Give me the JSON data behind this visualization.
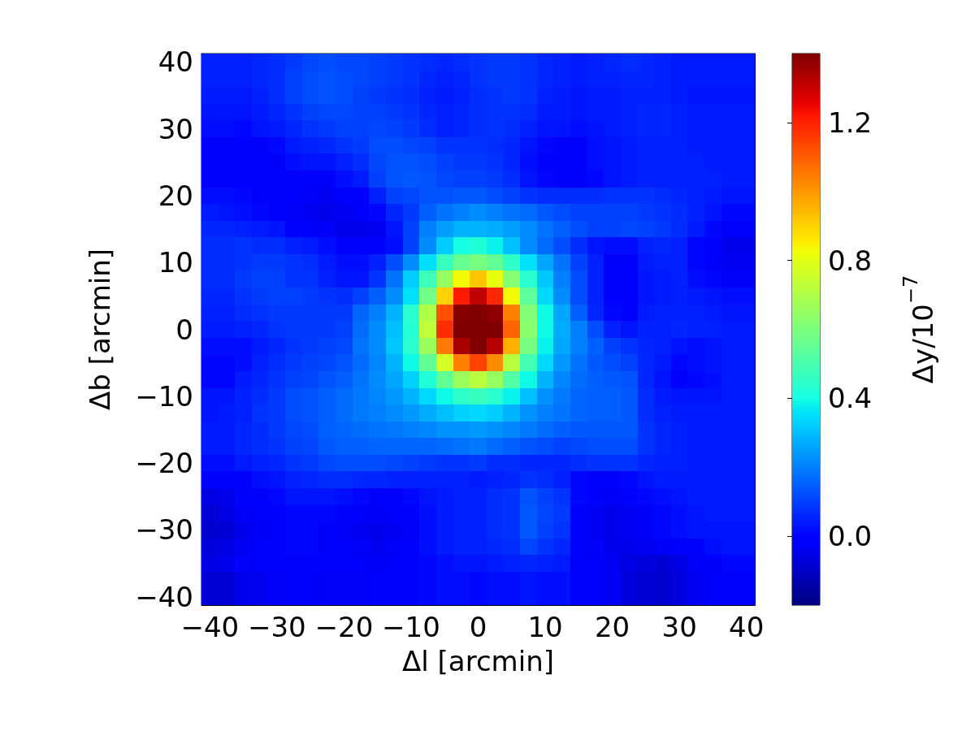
{
  "chart_data": {
    "type": "heatmap",
    "xlabel": "Δl [arcmin]",
    "ylabel": "Δb [arcmin]",
    "clabel": "Δy/10$^{−7}$",
    "categories": [
      "−40",
      null,
      null,
      null,
      "−30",
      null,
      null,
      null,
      "−20",
      null,
      null,
      null,
      "−10",
      null,
      null,
      null,
      "0",
      null,
      null,
      null,
      "10",
      null,
      null,
      null,
      "20",
      null,
      null,
      null,
      "30",
      null,
      null,
      null,
      "40"
    ],
    "y_categories": [
      "40",
      null,
      null,
      null,
      "30",
      null,
      null,
      null,
      "20",
      null,
      null,
      null,
      "10",
      null,
      null,
      null,
      "0",
      null,
      null,
      null,
      "−10",
      null,
      null,
      null,
      "−20",
      null,
      null,
      null,
      "−30",
      null,
      null,
      null,
      "−40"
    ],
    "clim": [
      -0.2,
      1.4
    ],
    "cticks": [
      {
        "value": 0,
        "label": "0.0"
      },
      0.4,
      0.8,
      1.2
    ],
    "cells": [
      [
        0.05,
        0.05,
        0.05,
        0.06,
        0.07,
        0.09,
        0.11,
        0.12,
        0.11,
        0.11,
        0.1,
        0.09,
        0.08,
        0.07,
        0.06,
        0.07,
        0.08,
        0.09,
        0.09,
        0.08,
        0.06,
        0.05,
        0.04,
        0.05,
        0.06,
        0.07,
        0.06,
        0.05,
        0.04,
        0.04,
        0.04,
        0.04,
        0.04
      ],
      [
        0.05,
        0.05,
        0.05,
        0.06,
        0.07,
        0.1,
        0.12,
        0.13,
        0.12,
        0.11,
        0.1,
        0.09,
        0.08,
        0.06,
        0.05,
        0.06,
        0.08,
        0.09,
        0.09,
        0.08,
        0.06,
        0.05,
        0.04,
        0.05,
        0.05,
        0.06,
        0.06,
        0.05,
        0.04,
        0.04,
        0.04,
        0.04,
        0.04
      ],
      [
        0.04,
        0.04,
        0.04,
        0.05,
        0.07,
        0.1,
        0.12,
        0.13,
        0.12,
        0.1,
        0.09,
        0.08,
        0.07,
        0.05,
        0.04,
        0.05,
        0.07,
        0.08,
        0.09,
        0.08,
        0.05,
        0.04,
        0.03,
        0.04,
        0.04,
        0.05,
        0.05,
        0.05,
        0.04,
        0.03,
        0.03,
        0.03,
        0.03
      ],
      [
        0.03,
        0.03,
        0.03,
        0.04,
        0.06,
        0.08,
        0.1,
        0.11,
        0.11,
        0.1,
        0.1,
        0.09,
        0.08,
        0.06,
        0.05,
        0.06,
        0.07,
        0.08,
        0.08,
        0.07,
        0.04,
        0.04,
        0.03,
        0.04,
        0.04,
        0.05,
        0.06,
        0.06,
        0.05,
        0.04,
        0.04,
        0.04,
        0.04
      ],
      [
        0.02,
        0.02,
        0.01,
        0.03,
        0.04,
        0.06,
        0.08,
        0.09,
        0.1,
        0.1,
        0.11,
        0.1,
        0.09,
        0.07,
        0.05,
        0.06,
        0.07,
        0.08,
        0.07,
        0.05,
        0.03,
        0.03,
        0.02,
        0.03,
        0.04,
        0.05,
        0.06,
        0.06,
        0.05,
        0.04,
        0.04,
        0.04,
        0.04
      ],
      [
        0,
        -0.01,
        -0.02,
        0,
        0.01,
        0.04,
        0.05,
        0.06,
        0.08,
        0.09,
        0.12,
        0.12,
        0.11,
        0.1,
        0.08,
        0.08,
        0.08,
        0.07,
        0.06,
        0.03,
        0.01,
        0,
        0,
        0.02,
        0.03,
        0.04,
        0.05,
        0.05,
        0.05,
        0.04,
        0.04,
        0.04,
        0.04
      ],
      [
        -0.01,
        -0.01,
        -0.02,
        -0.01,
        0,
        0.02,
        0.03,
        0.03,
        0.05,
        0.07,
        0.11,
        0.13,
        0.13,
        0.12,
        0.1,
        0.09,
        0.09,
        0.08,
        0.06,
        0.02,
        0,
        -0.01,
        0,
        0.02,
        0.03,
        0.04,
        0.05,
        0.05,
        0.05,
        0.05,
        0.04,
        0.04,
        0.04
      ],
      [
        0,
        0,
        -0.01,
        -0.01,
        0,
        0,
        0,
        -0.01,
        0.02,
        0.04,
        0.1,
        0.13,
        0.14,
        0.13,
        0.11,
        0.1,
        0.1,
        0.09,
        0.07,
        0.03,
        0.01,
        0,
        0,
        0.01,
        0.03,
        0.04,
        0.05,
        0.05,
        0.05,
        0.05,
        0.05,
        0.04,
        0.04
      ],
      [
        0.02,
        0.02,
        0.01,
        0,
        0,
        -0.02,
        -0.03,
        -0.04,
        -0.02,
        0,
        0.05,
        0.1,
        0.11,
        0.13,
        0.13,
        0.14,
        0.14,
        0.12,
        0.1,
        0.08,
        0.07,
        0.07,
        0.07,
        0.07,
        0.08,
        0.08,
        0.08,
        0.07,
        0.06,
        0.05,
        0.04,
        0.03,
        0.03
      ],
      [
        0.04,
        0.03,
        0.02,
        0.01,
        0,
        -0.03,
        -0.04,
        -0.05,
        -0.04,
        -0.02,
        0.01,
        0.06,
        0.09,
        0.15,
        0.18,
        0.2,
        0.22,
        0.2,
        0.18,
        0.17,
        0.14,
        0.12,
        0.1,
        0.1,
        0.1,
        0.1,
        0.09,
        0.08,
        0.07,
        0.05,
        0.03,
        0.01,
        0.01
      ],
      [
        0.06,
        0.06,
        0.05,
        0.04,
        0.03,
        0,
        -0.01,
        -0.03,
        -0.05,
        -0.05,
        -0.04,
        0.03,
        0.1,
        0.2,
        0.25,
        0.28,
        0.28,
        0.27,
        0.25,
        0.22,
        0.18,
        0.15,
        0.12,
        0.1,
        0.1,
        0.11,
        0.1,
        0.09,
        0.07,
        0.04,
        0.01,
        -0.02,
        -0.02
      ],
      [
        0.07,
        0.07,
        0.08,
        0.07,
        0.07,
        0.05,
        0.04,
        0.02,
        -0.01,
        -0.02,
        -0.02,
        0.02,
        0.1,
        0.22,
        0.32,
        0.4,
        0.42,
        0.38,
        0.3,
        0.22,
        0.17,
        0.12,
        0.07,
        0.03,
        0.02,
        0.02,
        0.05,
        0.06,
        0.05,
        0.01,
        -0.01,
        -0.05,
        -0.05
      ],
      [
        0.07,
        0.07,
        0.08,
        0.09,
        0.09,
        0.08,
        0.07,
        0.04,
        0.02,
        0.02,
        0.05,
        0.12,
        0.22,
        0.35,
        0.47,
        0.56,
        0.59,
        0.55,
        0.45,
        0.35,
        0.26,
        0.18,
        0.1,
        0.05,
        0,
        0,
        0.04,
        0.05,
        0.05,
        0.01,
        -0.01,
        -0.04,
        -0.04
      ],
      [
        0.07,
        0.07,
        0.09,
        0.1,
        0.1,
        0.08,
        0.08,
        0.05,
        0.03,
        0.03,
        0.08,
        0.18,
        0.32,
        0.48,
        0.65,
        0.83,
        0.92,
        0.81,
        0.62,
        0.44,
        0.31,
        0.2,
        0.12,
        0.05,
        -0.01,
        -0.02,
        0.03,
        0.04,
        0.05,
        0.02,
        0.01,
        -0.03,
        -0.03
      ],
      [
        0.06,
        0.06,
        0.08,
        0.09,
        0.1,
        0.1,
        0.09,
        0.08,
        0.07,
        0.1,
        0.15,
        0.22,
        0.35,
        0.58,
        0.9,
        1.21,
        1.31,
        1.19,
        0.83,
        0.54,
        0.34,
        0.22,
        0.12,
        0.05,
        -0.01,
        -0.01,
        0.03,
        0.04,
        0.05,
        0.04,
        0.03,
        0.02,
        0.02
      ],
      [
        0.05,
        0.05,
        0.07,
        0.08,
        0.09,
        0.09,
        0.09,
        0.09,
        0.09,
        0.16,
        0.2,
        0.28,
        0.44,
        0.7,
        1.12,
        1.39,
        1.4,
        1.38,
        1.04,
        0.61,
        0.39,
        0.26,
        0.15,
        0.06,
        0.01,
        0,
        0.04,
        0.05,
        0.05,
        0.05,
        0.04,
        0.03,
        0.03
      ],
      [
        0.04,
        0.04,
        0.05,
        0.06,
        0.08,
        0.09,
        0.09,
        0.09,
        0.1,
        0.17,
        0.22,
        0.3,
        0.43,
        0.73,
        1.18,
        1.4,
        1.4,
        1.4,
        1.09,
        0.63,
        0.39,
        0.27,
        0.2,
        0.12,
        0.05,
        0.03,
        0.05,
        0.05,
        0.06,
        0.05,
        0.05,
        0.04,
        0.04
      ],
      [
        0.02,
        0.02,
        0.02,
        0.04,
        0.06,
        0.08,
        0.09,
        0.1,
        0.11,
        0.18,
        0.22,
        0.31,
        0.44,
        0.66,
        1.05,
        1.34,
        1.4,
        1.32,
        0.96,
        0.59,
        0.38,
        0.26,
        0.2,
        0.15,
        0.1,
        0.08,
        0.06,
        0.05,
        0.03,
        0.02,
        0.03,
        0.04,
        0.04
      ],
      [
        0.01,
        0.01,
        0.02,
        0.05,
        0.07,
        0.09,
        0.1,
        0.11,
        0.13,
        0.17,
        0.21,
        0.28,
        0.39,
        0.55,
        0.77,
        1.04,
        1.14,
        1.02,
        0.72,
        0.49,
        0.34,
        0.24,
        0.18,
        0.14,
        0.12,
        0.1,
        0.06,
        0.04,
        0.01,
        0.02,
        0.03,
        0.04,
        0.04
      ],
      [
        0.01,
        0.01,
        0.04,
        0.06,
        0.08,
        0.1,
        0.11,
        0.13,
        0.15,
        0.18,
        0.22,
        0.26,
        0.33,
        0.42,
        0.55,
        0.66,
        0.72,
        0.65,
        0.52,
        0.39,
        0.28,
        0.21,
        0.17,
        0.15,
        0.14,
        0.13,
        0.06,
        0.03,
        0,
        0.01,
        0.02,
        0.04,
        0.04
      ],
      [
        0.03,
        0.03,
        0.05,
        0.07,
        0.09,
        0.12,
        0.13,
        0.15,
        0.17,
        0.19,
        0.21,
        0.24,
        0.28,
        0.34,
        0.39,
        0.45,
        0.47,
        0.44,
        0.38,
        0.3,
        0.23,
        0.19,
        0.16,
        0.15,
        0.15,
        0.14,
        0.07,
        0.04,
        0.03,
        0.03,
        0.03,
        0.04,
        0.04
      ],
      [
        0.03,
        0.04,
        0.05,
        0.08,
        0.09,
        0.12,
        0.13,
        0.15,
        0.17,
        0.19,
        0.2,
        0.22,
        0.24,
        0.27,
        0.3,
        0.33,
        0.34,
        0.32,
        0.28,
        0.23,
        0.2,
        0.18,
        0.16,
        0.15,
        0.15,
        0.14,
        0.07,
        0.05,
        0.04,
        0.04,
        0.04,
        0.04,
        0.04
      ],
      [
        0.04,
        0.04,
        0.06,
        0.07,
        0.09,
        0.11,
        0.12,
        0.15,
        0.16,
        0.17,
        0.18,
        0.19,
        0.2,
        0.21,
        0.23,
        0.23,
        0.24,
        0.23,
        0.21,
        0.19,
        0.17,
        0.15,
        0.14,
        0.14,
        0.14,
        0.14,
        0.08,
        0.06,
        0.05,
        0.04,
        0.04,
        0.04,
        0.04
      ],
      [
        0.04,
        0.04,
        0.06,
        0.07,
        0.08,
        0.1,
        0.11,
        0.14,
        0.15,
        0.15,
        0.16,
        0.16,
        0.16,
        0.16,
        0.17,
        0.18,
        0.19,
        0.17,
        0.15,
        0.13,
        0.12,
        0.1,
        0.11,
        0.12,
        0.12,
        0.12,
        0.08,
        0.06,
        0.05,
        0.04,
        0.04,
        0.04,
        0.04
      ],
      [
        0.02,
        0.02,
        0.04,
        0.05,
        0.06,
        0.08,
        0.09,
        0.11,
        0.12,
        0.12,
        0.12,
        0.11,
        0.1,
        0.09,
        0.08,
        0.08,
        0.09,
        0.07,
        0.07,
        0.06,
        0.06,
        0.06,
        0.07,
        0.08,
        0.08,
        0.08,
        0.06,
        0.05,
        0.05,
        0.04,
        0.04,
        0.04,
        0.04
      ],
      [
        -0.02,
        -0.02,
        0,
        0.02,
        0.03,
        0.05,
        0.06,
        0.07,
        0.07,
        0.06,
        0.06,
        0.05,
        0.05,
        0.05,
        0.05,
        0.05,
        0.04,
        0.05,
        0.06,
        0.08,
        0.07,
        0.05,
        0.01,
        0,
        0,
        0.01,
        0.03,
        0.04,
        0.04,
        0.04,
        0.04,
        0.04,
        0.04
      ],
      [
        -0.06,
        -0.05,
        -0.02,
        -0.01,
        0.01,
        0.03,
        0.03,
        0.03,
        0.02,
        0.01,
        -0.01,
        0,
        0.01,
        0.03,
        0.04,
        0.05,
        0.05,
        0.07,
        0.08,
        0.13,
        0.1,
        0.08,
        0.01,
        -0.02,
        -0.03,
        -0.02,
        0.01,
        0.02,
        0.03,
        0.04,
        0.04,
        0.04,
        0.04
      ],
      [
        -0.08,
        -0.06,
        -0.03,
        -0.02,
        0,
        0.01,
        0.01,
        0.01,
        0,
        -0.01,
        -0.03,
        -0.02,
        -0.01,
        0.02,
        0.04,
        0.05,
        0.05,
        0.07,
        0.08,
        0.14,
        0.11,
        0.09,
        -0.01,
        -0.04,
        -0.05,
        -0.04,
        0,
        0.01,
        0.02,
        0.03,
        0.04,
        0.04,
        0.04
      ],
      [
        -0.09,
        -0.08,
        -0.05,
        -0.03,
        -0.01,
        0.01,
        0.01,
        0,
        -0.03,
        -0.04,
        -0.05,
        -0.04,
        -0.03,
        0.02,
        0.04,
        0.05,
        0.05,
        0.07,
        0.08,
        0.14,
        0.1,
        0.08,
        -0.02,
        -0.04,
        -0.05,
        -0.04,
        -0.01,
        0.01,
        0.02,
        0.03,
        0.03,
        0.03,
        0.03
      ],
      [
        -0.07,
        -0.06,
        -0.04,
        -0.02,
        0,
        0.01,
        0.01,
        0,
        -0.02,
        -0.03,
        -0.04,
        -0.03,
        -0.02,
        0.02,
        0.04,
        0.05,
        0.05,
        0.06,
        0.07,
        0.11,
        0.08,
        0.06,
        -0.01,
        -0.03,
        -0.05,
        -0.05,
        -0.04,
        -0.03,
        -0.02,
        0,
        0.02,
        0.03,
        0.03
      ],
      [
        -0.06,
        -0.05,
        -0.03,
        -0.02,
        -0.01,
        0,
        0,
        -0.01,
        -0.02,
        -0.02,
        -0.03,
        -0.02,
        -0.01,
        0.01,
        0.02,
        0.03,
        0.03,
        0.04,
        0.05,
        0.06,
        0.05,
        0.04,
        0,
        -0.02,
        -0.04,
        -0.06,
        -0.07,
        -0.08,
        -0.06,
        -0.03,
        0,
        0.01,
        0.01
      ],
      [
        -0.08,
        -0.08,
        -0.05,
        -0.04,
        -0.03,
        -0.02,
        -0.02,
        -0.03,
        -0.03,
        -0.03,
        -0.02,
        -0.01,
        0,
        0.01,
        0.02,
        0.02,
        0.01,
        0.02,
        0.02,
        0.03,
        0.02,
        0.02,
        0,
        -0.02,
        -0.04,
        -0.07,
        -0.08,
        -0.09,
        -0.07,
        -0.04,
        -0.02,
        0,
        0
      ],
      [
        -0.08,
        -0.08,
        -0.05,
        -0.04,
        -0.03,
        -0.02,
        -0.02,
        -0.03,
        -0.03,
        -0.03,
        -0.02,
        -0.01,
        0,
        0.01,
        0.02,
        0.02,
        0.01,
        0.02,
        0.02,
        0.03,
        0.02,
        0.02,
        0,
        -0.02,
        -0.04,
        -0.07,
        -0.08,
        -0.09,
        -0.07,
        -0.04,
        -0.02,
        0,
        0
      ]
    ]
  }
}
